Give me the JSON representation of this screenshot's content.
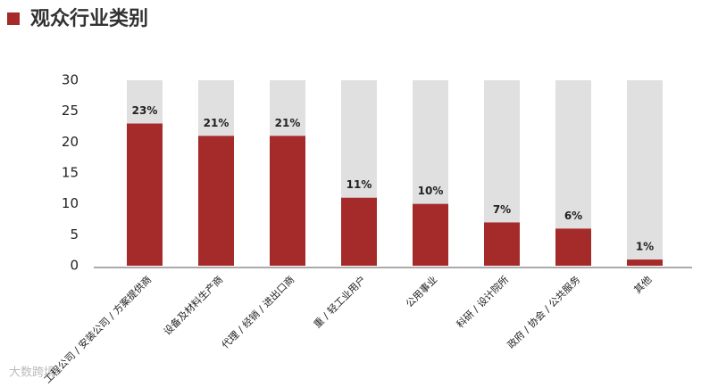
{
  "chart_data": {
    "type": "bar",
    "title": "观众行业类别",
    "categories": [
      "工程公司 / 安装公司 / 方案提供商",
      "设备及材料生产商",
      "代理 / 经销 / 进出口商",
      "重 / 轻工业用户",
      "公用事业",
      "科研 / 设计院所",
      "政府 / 协会 / 公共服务",
      "其他"
    ],
    "values": [
      23,
      21,
      21,
      11,
      10,
      7,
      6,
      1
    ],
    "value_labels": [
      "23%",
      "21%",
      "21%",
      "11%",
      "10%",
      "7%",
      "6%",
      "1%"
    ],
    "color": "#a52a2a",
    "background_color": "#e0e0e0",
    "ylim": [
      0,
      30
    ],
    "yticks": [
      0,
      5,
      10,
      15,
      20,
      25,
      30
    ]
  },
  "watermark": "大数跨境"
}
